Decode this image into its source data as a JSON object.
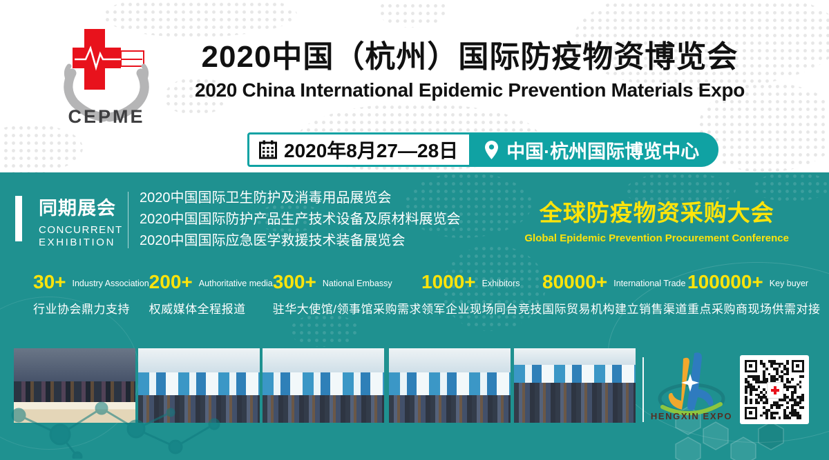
{
  "brand": {
    "name": "CEPME"
  },
  "header": {
    "title_zh": "2020中国（杭州）国际防疫物资博览会",
    "title_en": "2020 China International Epidemic Prevention Materials Expo",
    "date_label": "2020年8月27—28日",
    "venue_label": "中国·杭州国际博览中心"
  },
  "concurrent": {
    "title_zh": "同期展会",
    "title_en_lines": [
      "CONCURRENT",
      "EXHIBITION"
    ],
    "exhibitions": [
      "2020中国国际卫生防护及消毒用品展览会",
      "2020中国国际防护产品生产技术设备及原材料展览会",
      "2020中国国际应急医学救援技术装备展览会"
    ]
  },
  "conference": {
    "title_zh": "全球防疫物资采购大会",
    "title_en": "Global Epidemic Prevention Procurement Conference"
  },
  "stats": [
    {
      "value": "30+",
      "label_en": "Industry Association",
      "label_zh": "行业协会鼎力支持"
    },
    {
      "value": "200+",
      "label_en": "Authoritative media",
      "label_zh": "权威媒体全程报道"
    },
    {
      "value": "300+",
      "label_en": "National Embassy",
      "label_zh": "驻华大使馆/领事馆采购需求"
    },
    {
      "value": "1000+",
      "label_en": "Exhibitors",
      "label_zh": "领军企业现场同台竞技"
    },
    {
      "value": "80000+",
      "label_en": "International Trade",
      "label_zh": "国际贸易机构建立销售渠道"
    },
    {
      "value": "100000+",
      "label_en": "Key buyer",
      "label_zh": "重点采购商现场供需对接"
    }
  ],
  "footer": {
    "organizer": "HENGXIN EXPO"
  },
  "colors": {
    "band_teal": "#1f9190",
    "badge_teal": "#10a2a3",
    "highlight_yellow": "#ffe40a",
    "logo_red": "#e8121c",
    "hand_gray": "#b5b5b6"
  }
}
